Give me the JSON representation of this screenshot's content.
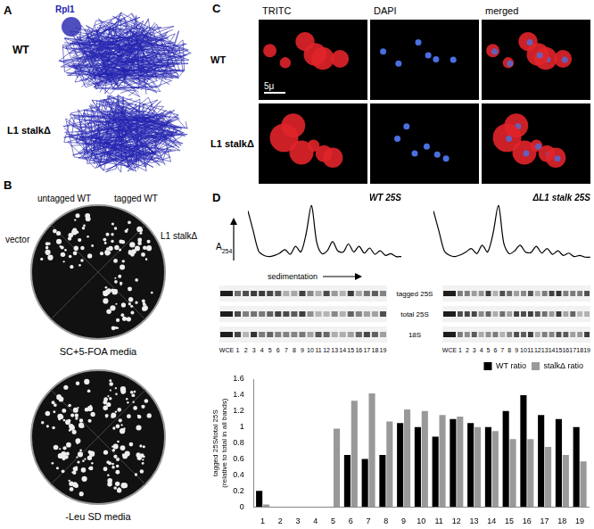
{
  "panels": {
    "A": {
      "letter": "A",
      "wt": "WT",
      "rpl1": "Rpl1",
      "mutant": "L1 stalkΔ"
    },
    "B": {
      "letter": "B",
      "top_plate": {
        "sectors": [
          "untagged WT",
          "tagged WT",
          "L1 stalkΔ",
          "vector"
        ],
        "media": "SC+5-FOA media"
      },
      "bottom_plate": {
        "media": "-Leu SD media"
      }
    },
    "C": {
      "letter": "C",
      "columns": [
        "TRITC",
        "DAPI",
        "merged"
      ],
      "rows": [
        "WT",
        "L1 stalkΔ"
      ],
      "scale_bar": "5μ"
    },
    "D": {
      "letter": "D",
      "y_arrow": {
        "label": "A",
        "subscript": "254"
      },
      "x_arrow": "sedimentation",
      "gel_rows": [
        "tagged 25S",
        "total 25S",
        "18S"
      ],
      "lanes": [
        "WCE",
        "1",
        "2",
        "3",
        "4",
        "5",
        "6",
        "7",
        "8",
        "9",
        "10",
        "11",
        "12",
        "13",
        "14",
        "15",
        "16",
        "17",
        "18",
        "19"
      ]
    }
  },
  "chart_data": [
    {
      "type": "line",
      "title": "WT 25S",
      "color": "#000000",
      "tick_labels": false,
      "grid": false,
      "x": [
        0,
        1,
        2,
        3,
        4,
        5,
        6,
        7,
        8,
        9,
        10,
        11,
        12,
        13,
        14,
        15,
        16,
        17,
        18,
        19,
        20,
        21,
        22,
        23,
        24,
        25,
        26,
        27,
        28,
        29
      ],
      "values": [
        0.9,
        0.55,
        0.2,
        0.12,
        0.1,
        0.12,
        0.16,
        0.22,
        0.14,
        0.28,
        0.18,
        0.5,
        1.0,
        0.35,
        0.15,
        0.2,
        0.36,
        0.2,
        0.18,
        0.32,
        0.18,
        0.28,
        0.16,
        0.25,
        0.14,
        0.2,
        0.12,
        0.15,
        0.1,
        0.1
      ],
      "xlim": [
        0,
        29
      ],
      "ylim": [
        0,
        1
      ]
    },
    {
      "type": "line",
      "title": "ΔL1 stalk 25S",
      "color": "#000000",
      "tick_labels": false,
      "grid": false,
      "x": [
        0,
        1,
        2,
        3,
        4,
        5,
        6,
        7,
        8,
        9,
        10,
        11,
        12,
        13,
        14,
        15,
        16,
        17,
        18,
        19,
        20,
        21,
        22,
        23,
        24,
        25,
        26,
        27,
        28,
        29
      ],
      "values": [
        0.9,
        0.55,
        0.2,
        0.12,
        0.1,
        0.13,
        0.18,
        0.24,
        0.15,
        0.3,
        0.18,
        0.5,
        1.0,
        0.33,
        0.15,
        0.2,
        0.3,
        0.18,
        0.17,
        0.28,
        0.16,
        0.24,
        0.14,
        0.2,
        0.12,
        0.16,
        0.1,
        0.12,
        0.09,
        0.09
      ],
      "xlim": [
        0,
        29
      ],
      "ylim": [
        0,
        1
      ]
    },
    {
      "type": "bar",
      "categories": [
        "1",
        "2",
        "3",
        "4",
        "5",
        "6",
        "7",
        "8",
        "9",
        "10",
        "11",
        "12",
        "13",
        "14",
        "15",
        "16",
        "17",
        "18",
        "19"
      ],
      "series": [
        {
          "name": "WT ratio",
          "color": "#000000",
          "values": [
            0.2,
            0,
            0,
            0,
            0,
            0.65,
            0.6,
            0.65,
            1.05,
            1.0,
            0.88,
            1.1,
            1.05,
            1.0,
            1.2,
            1.4,
            1.15,
            1.1,
            1.0
          ]
        },
        {
          "name": "stalkΔ ratio",
          "color": "#999999",
          "values": [
            0.03,
            0,
            0,
            0,
            0.98,
            1.33,
            1.42,
            1.07,
            1.22,
            1.2,
            1.15,
            1.13,
            1.0,
            0.95,
            0.85,
            0.85,
            0.75,
            0.65,
            0.57
          ]
        }
      ],
      "y_label": [
        "tagged 25S/total 25S",
        "(relative to total in all bands)"
      ],
      "ylim": [
        0,
        1.6
      ],
      "yticks": [
        0,
        0.2,
        0.4,
        0.6,
        0.8,
        1,
        1.2,
        1.4,
        1.6
      ],
      "legend": "top-right",
      "grid": false
    }
  ]
}
